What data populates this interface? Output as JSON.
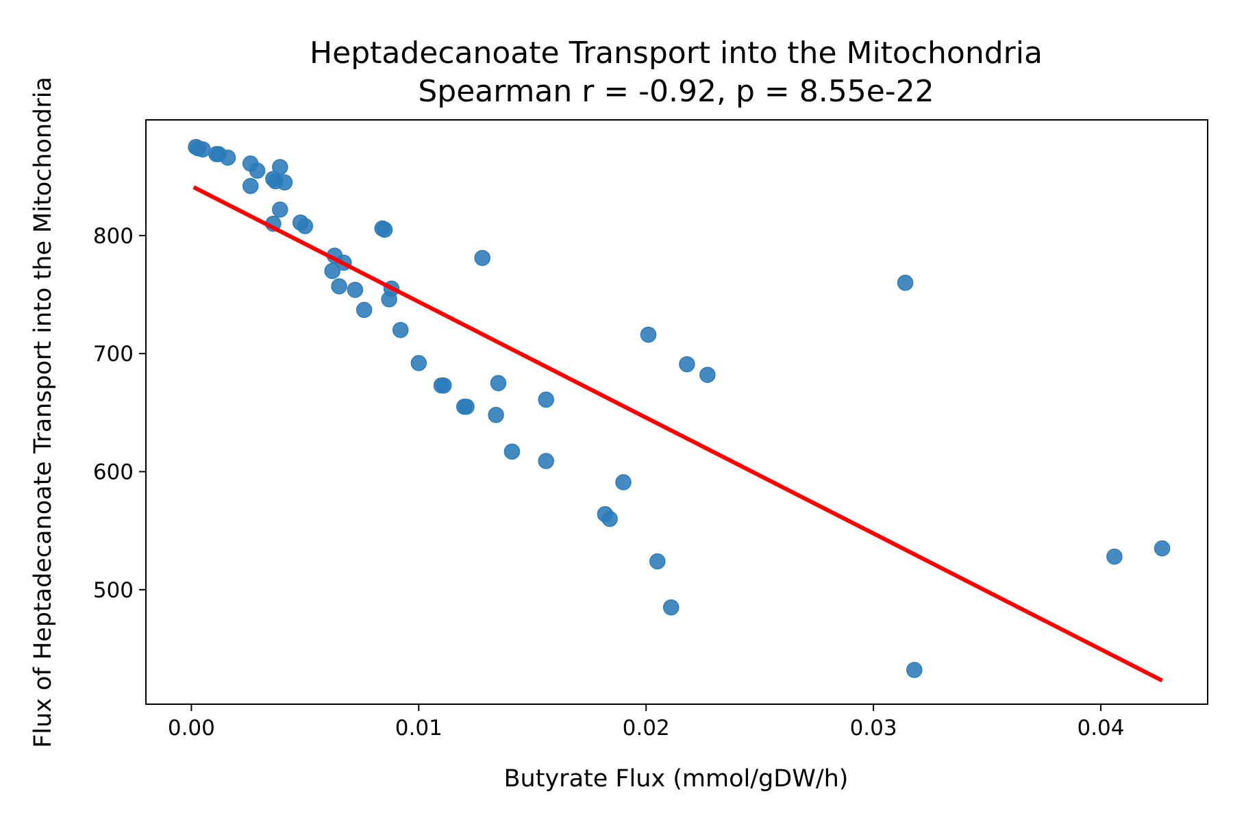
{
  "chart_data": {
    "type": "scatter",
    "title": "Heptadecanoate Transport into the Mitochondria",
    "subtitle": "Spearman r = -0.92, p = 8.55e-22",
    "xlabel": "Butyrate Flux (mmol/gDW/h)",
    "ylabel": "Flux of Heptadecanoate Transport into the Mitochondria",
    "xlim": [
      -0.002,
      0.0447
    ],
    "ylim": [
      403,
      898
    ],
    "xticks": [
      0.0,
      0.01,
      0.02,
      0.03,
      0.04
    ],
    "xtick_labels": [
      "0.00",
      "0.01",
      "0.02",
      "0.03",
      "0.04"
    ],
    "yticks": [
      500,
      600,
      700,
      800
    ],
    "ytick_labels": [
      "500",
      "600",
      "700",
      "800"
    ],
    "grid": false,
    "point_color": "#2b7bba",
    "line_color": "#ff0000",
    "points": [
      {
        "x": 0.0002,
        "y": 875
      },
      {
        "x": 0.0003,
        "y": 874
      },
      {
        "x": 0.0005,
        "y": 873
      },
      {
        "x": 0.0011,
        "y": 869
      },
      {
        "x": 0.0012,
        "y": 869
      },
      {
        "x": 0.0016,
        "y": 866
      },
      {
        "x": 0.0026,
        "y": 861
      },
      {
        "x": 0.0029,
        "y": 855
      },
      {
        "x": 0.0026,
        "y": 842
      },
      {
        "x": 0.0039,
        "y": 858
      },
      {
        "x": 0.0036,
        "y": 848
      },
      {
        "x": 0.0037,
        "y": 846
      },
      {
        "x": 0.0041,
        "y": 845
      },
      {
        "x": 0.0039,
        "y": 822
      },
      {
        "x": 0.0036,
        "y": 810
      },
      {
        "x": 0.0048,
        "y": 811
      },
      {
        "x": 0.005,
        "y": 808
      },
      {
        "x": 0.0084,
        "y": 806
      },
      {
        "x": 0.0085,
        "y": 805
      },
      {
        "x": 0.0063,
        "y": 783
      },
      {
        "x": 0.0067,
        "y": 777
      },
      {
        "x": 0.0062,
        "y": 770
      },
      {
        "x": 0.0065,
        "y": 757
      },
      {
        "x": 0.0072,
        "y": 754
      },
      {
        "x": 0.0088,
        "y": 755
      },
      {
        "x": 0.0087,
        "y": 746
      },
      {
        "x": 0.0076,
        "y": 737
      },
      {
        "x": 0.0092,
        "y": 720
      },
      {
        "x": 0.0128,
        "y": 781
      },
      {
        "x": 0.01,
        "y": 692
      },
      {
        "x": 0.011,
        "y": 673
      },
      {
        "x": 0.0111,
        "y": 673
      },
      {
        "x": 0.012,
        "y": 655
      },
      {
        "x": 0.0121,
        "y": 655
      },
      {
        "x": 0.0135,
        "y": 675
      },
      {
        "x": 0.0134,
        "y": 648
      },
      {
        "x": 0.0156,
        "y": 661
      },
      {
        "x": 0.0141,
        "y": 617
      },
      {
        "x": 0.0156,
        "y": 609
      },
      {
        "x": 0.019,
        "y": 591
      },
      {
        "x": 0.0182,
        "y": 564
      },
      {
        "x": 0.0184,
        "y": 560
      },
      {
        "x": 0.0201,
        "y": 716
      },
      {
        "x": 0.0218,
        "y": 691
      },
      {
        "x": 0.0227,
        "y": 682
      },
      {
        "x": 0.0205,
        "y": 524
      },
      {
        "x": 0.0211,
        "y": 485
      },
      {
        "x": 0.0314,
        "y": 760
      },
      {
        "x": 0.0318,
        "y": 432
      },
      {
        "x": 0.0406,
        "y": 528
      },
      {
        "x": 0.0427,
        "y": 535
      }
    ],
    "fit_line": {
      "x": [
        0.0001,
        0.0427
      ],
      "y": [
        841,
        423
      ]
    }
  }
}
